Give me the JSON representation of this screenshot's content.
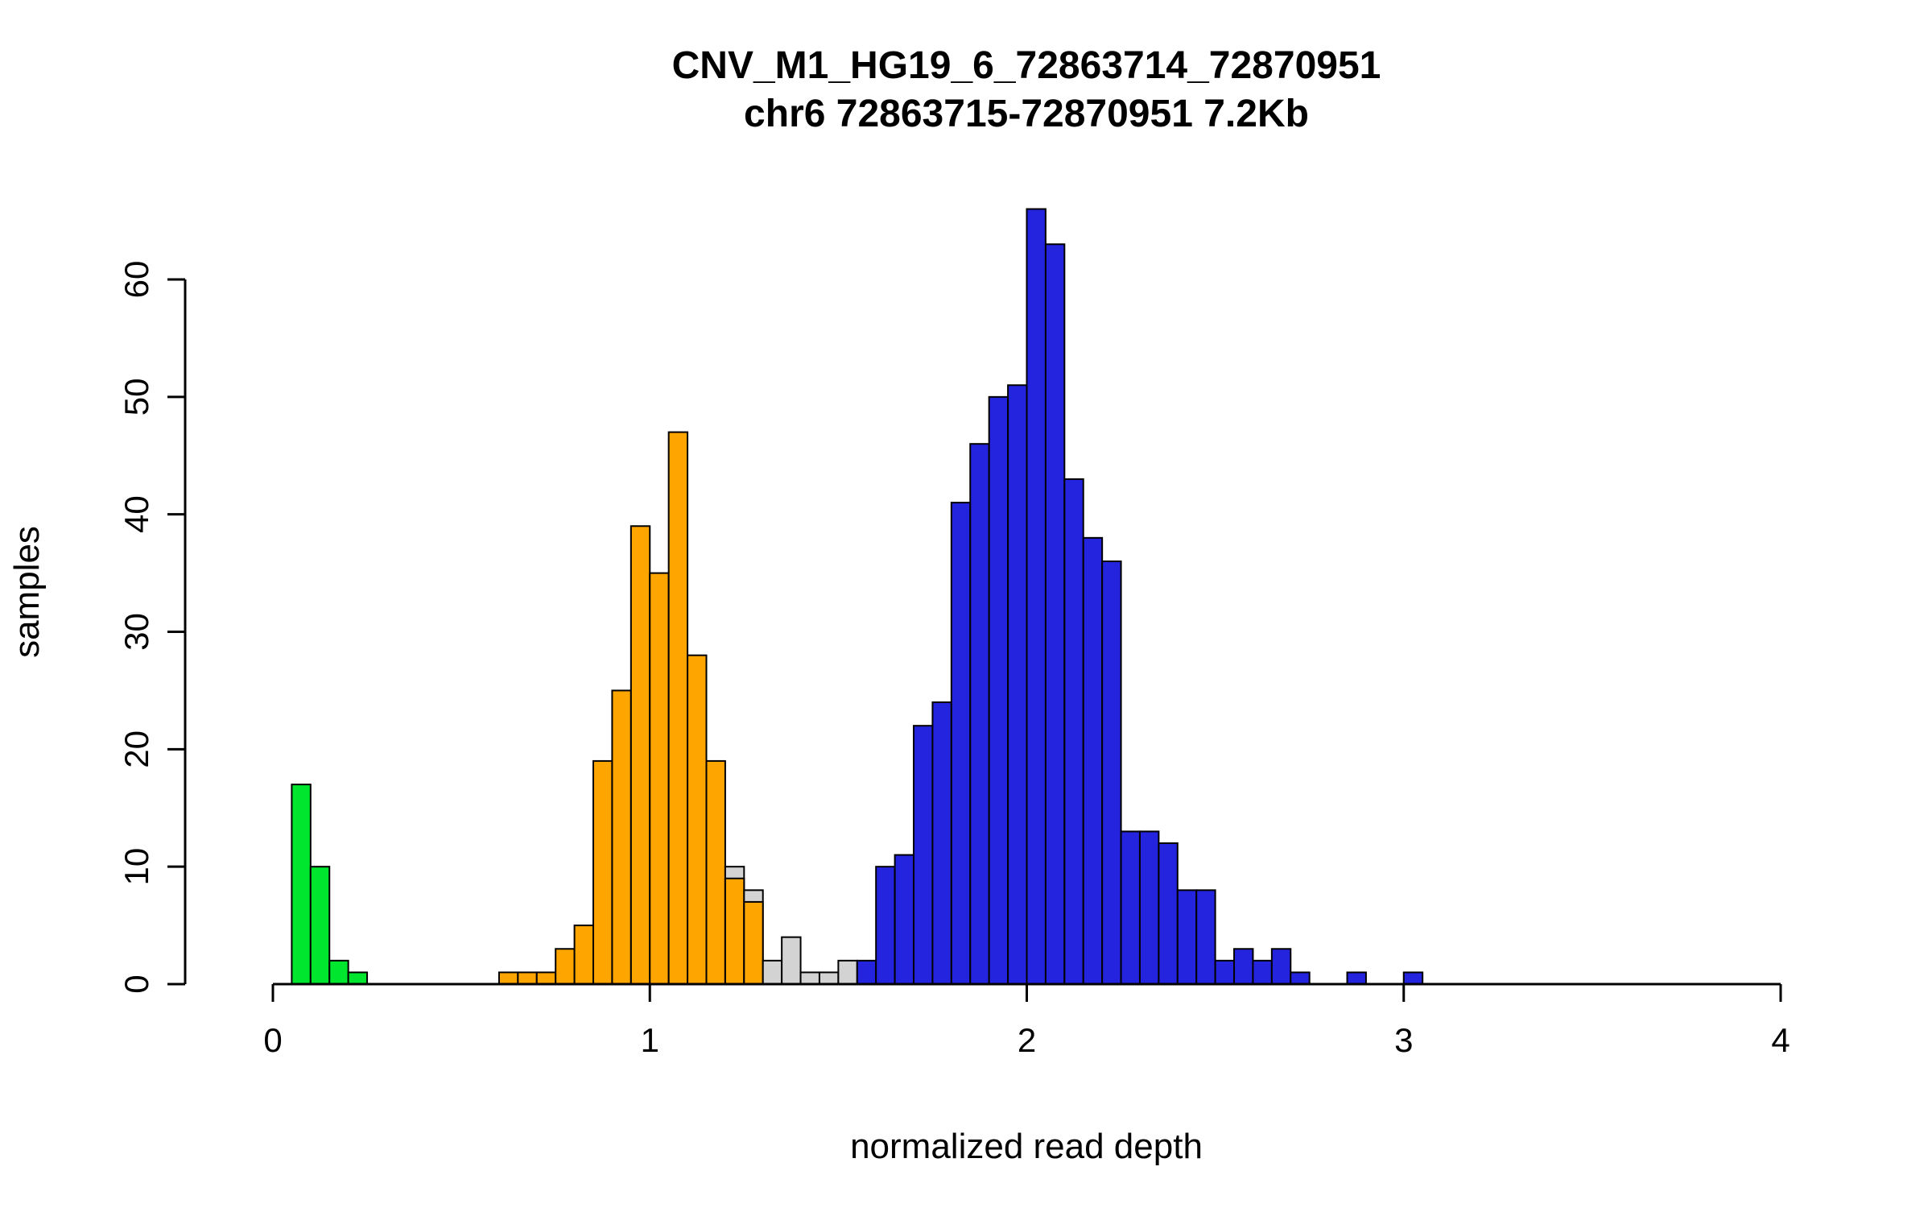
{
  "figure": {
    "kind": "R-style histogram figure",
    "background": "#ffffff"
  },
  "chart_data": {
    "type": "bar",
    "chart_kind": "histogram",
    "title": "CNV_M1_HG19_6_72863714_72870951",
    "subtitle": "chr6 72863715-72870951 7.2Kb",
    "xlabel": "normalized read depth",
    "ylabel": "samples",
    "xlim": [
      0,
      4
    ],
    "ylim": [
      0,
      66
    ],
    "xticks": [
      0,
      1,
      2,
      3,
      4
    ],
    "yticks": [
      0,
      10,
      20,
      30,
      40,
      50,
      60
    ],
    "grid": false,
    "legend": "none",
    "bin_width": 0.05,
    "colors": {
      "green": "#00E52E",
      "orange": "#FFA500",
      "gray": "#D3D3D3",
      "blue": "#2424DF",
      "stroke": "#000000"
    },
    "bars": [
      {
        "x": 0.05,
        "h": 17,
        "color": "green"
      },
      {
        "x": 0.1,
        "h": 10,
        "color": "green"
      },
      {
        "x": 0.15,
        "h": 2,
        "color": "green"
      },
      {
        "x": 0.2,
        "h": 1,
        "color": "green"
      },
      {
        "x": 0.6,
        "h": 1,
        "color": "orange"
      },
      {
        "x": 0.65,
        "h": 1,
        "color": "orange"
      },
      {
        "x": 0.7,
        "h": 1,
        "color": "orange"
      },
      {
        "x": 0.75,
        "h": 3,
        "color": "orange"
      },
      {
        "x": 0.8,
        "h": 5,
        "color": "orange"
      },
      {
        "x": 0.85,
        "h": 19,
        "color": "orange"
      },
      {
        "x": 0.9,
        "h": 25,
        "color": "orange"
      },
      {
        "x": 0.95,
        "h": 39,
        "color": "orange"
      },
      {
        "x": 1.0,
        "h": 35,
        "color": "orange"
      },
      {
        "x": 1.05,
        "h": 47,
        "color": "orange"
      },
      {
        "x": 1.1,
        "h": 28,
        "color": "orange"
      },
      {
        "x": 1.15,
        "h": 19,
        "color": "orange"
      },
      {
        "x": 1.2,
        "h": 10,
        "color": "gray"
      },
      {
        "x": 1.2,
        "h": 9,
        "color": "orange"
      },
      {
        "x": 1.25,
        "h": 8,
        "color": "gray"
      },
      {
        "x": 1.25,
        "h": 7,
        "color": "orange"
      },
      {
        "x": 1.3,
        "h": 2,
        "color": "gray"
      },
      {
        "x": 1.35,
        "h": 4,
        "color": "gray"
      },
      {
        "x": 1.4,
        "h": 1,
        "color": "gray"
      },
      {
        "x": 1.45,
        "h": 1,
        "color": "gray"
      },
      {
        "x": 1.5,
        "h": 2,
        "color": "gray"
      },
      {
        "x": 1.55,
        "h": 2,
        "color": "blue"
      },
      {
        "x": 1.6,
        "h": 10,
        "color": "blue"
      },
      {
        "x": 1.65,
        "h": 11,
        "color": "blue"
      },
      {
        "x": 1.7,
        "h": 22,
        "color": "blue"
      },
      {
        "x": 1.75,
        "h": 24,
        "color": "blue"
      },
      {
        "x": 1.8,
        "h": 41,
        "color": "blue"
      },
      {
        "x": 1.85,
        "h": 46,
        "color": "blue"
      },
      {
        "x": 1.9,
        "h": 50,
        "color": "blue"
      },
      {
        "x": 1.95,
        "h": 51,
        "color": "blue"
      },
      {
        "x": 2.0,
        "h": 66,
        "color": "blue"
      },
      {
        "x": 2.05,
        "h": 63,
        "color": "blue"
      },
      {
        "x": 2.1,
        "h": 43,
        "color": "blue"
      },
      {
        "x": 2.15,
        "h": 38,
        "color": "blue"
      },
      {
        "x": 2.2,
        "h": 36,
        "color": "blue"
      },
      {
        "x": 2.25,
        "h": 13,
        "color": "blue"
      },
      {
        "x": 2.3,
        "h": 13,
        "color": "blue"
      },
      {
        "x": 2.35,
        "h": 12,
        "color": "blue"
      },
      {
        "x": 2.4,
        "h": 8,
        "color": "blue"
      },
      {
        "x": 2.45,
        "h": 8,
        "color": "blue"
      },
      {
        "x": 2.5,
        "h": 2,
        "color": "blue"
      },
      {
        "x": 2.55,
        "h": 3,
        "color": "blue"
      },
      {
        "x": 2.6,
        "h": 2,
        "color": "blue"
      },
      {
        "x": 2.65,
        "h": 3,
        "color": "blue"
      },
      {
        "x": 2.7,
        "h": 1,
        "color": "blue"
      },
      {
        "x": 2.85,
        "h": 1,
        "color": "blue"
      },
      {
        "x": 3.0,
        "h": 1,
        "color": "blue"
      }
    ]
  }
}
